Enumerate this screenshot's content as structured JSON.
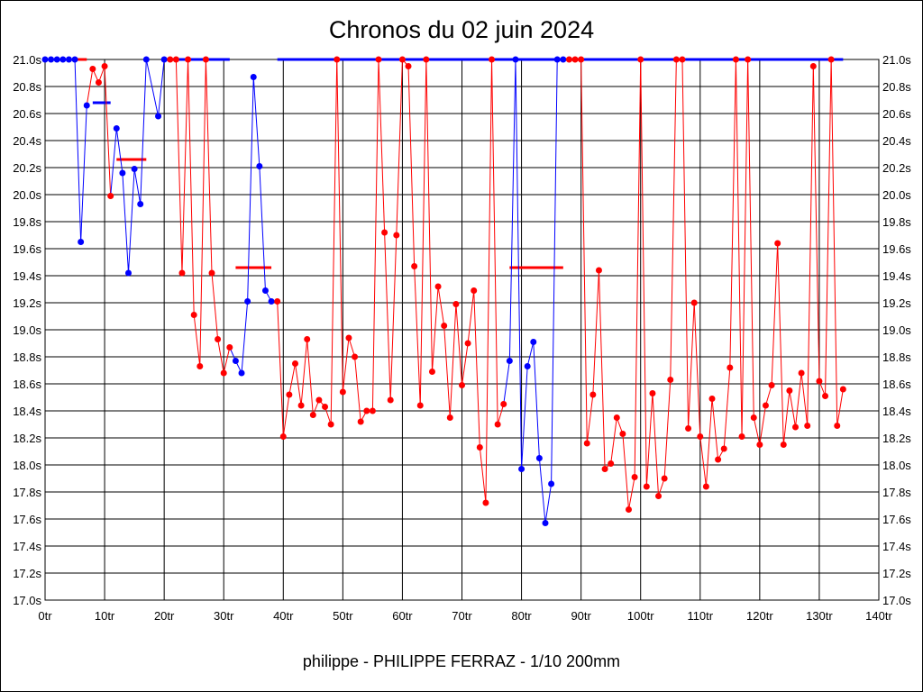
{
  "chart_data": {
    "type": "line",
    "title": "Chronos du 02 juin 2024",
    "footer": "philippe - PHILIPPE FERRAZ - 1/10 200mm",
    "xlabel": "",
    "ylabel": "",
    "xlim": [
      0,
      140
    ],
    "ylim": [
      17.0,
      21.0
    ],
    "x_ticks": [
      "0tr",
      "10tr",
      "20tr",
      "30tr",
      "40tr",
      "50tr",
      "60tr",
      "70tr",
      "80tr",
      "90tr",
      "100tr",
      "110tr",
      "120tr",
      "130tr",
      "140tr"
    ],
    "y_ticks": [
      "17.0s",
      "17.2s",
      "17.4s",
      "17.6s",
      "17.8s",
      "18.0s",
      "18.2s",
      "18.4s",
      "18.6s",
      "18.8s",
      "19.0s",
      "19.2s",
      "19.4s",
      "19.6s",
      "19.8s",
      "20.0s",
      "20.2s",
      "20.4s",
      "20.6s",
      "20.8s",
      "21.0s"
    ],
    "grid": true,
    "colors": {
      "b": "#0000ff",
      "r": "#ff0000",
      "grid": "#000000"
    },
    "points": [
      [
        0,
        21.0,
        "b"
      ],
      [
        1,
        21.0,
        "b"
      ],
      [
        2,
        21.0,
        "b"
      ],
      [
        3,
        21.0,
        "b"
      ],
      [
        4,
        21.0,
        "b"
      ],
      [
        5,
        21.0,
        "b"
      ],
      [
        6,
        19.65,
        "b"
      ],
      [
        7,
        20.66,
        "b"
      ],
      [
        8,
        20.93,
        "r"
      ],
      [
        9,
        20.83,
        "r"
      ],
      [
        10,
        20.95,
        "r"
      ],
      [
        11,
        19.99,
        "r"
      ],
      [
        12,
        20.49,
        "b"
      ],
      [
        13,
        20.16,
        "b"
      ],
      [
        14,
        19.42,
        "b"
      ],
      [
        15,
        20.19,
        "b"
      ],
      [
        16,
        19.93,
        "b"
      ],
      [
        17,
        21.0,
        "b"
      ],
      [
        19,
        20.58,
        "b"
      ],
      [
        20,
        21.0,
        "b"
      ],
      [
        21,
        21.0,
        "r"
      ],
      [
        22,
        21.0,
        "r"
      ],
      [
        23,
        19.42,
        "r"
      ],
      [
        24,
        21.0,
        "r"
      ],
      [
        25,
        19.11,
        "r"
      ],
      [
        26,
        18.73,
        "r"
      ],
      [
        27,
        21.0,
        "r"
      ],
      [
        28,
        19.42,
        "r"
      ],
      [
        29,
        18.93,
        "r"
      ],
      [
        30,
        18.68,
        "r"
      ],
      [
        31,
        18.87,
        "r"
      ],
      [
        32,
        18.77,
        "b"
      ],
      [
        33,
        18.68,
        "b"
      ],
      [
        34,
        19.21,
        "b"
      ],
      [
        35,
        20.87,
        "b"
      ],
      [
        36,
        20.21,
        "b"
      ],
      [
        37,
        19.29,
        "b"
      ],
      [
        38,
        19.21,
        "b"
      ],
      [
        39,
        19.21,
        "r"
      ],
      [
        40,
        18.21,
        "r"
      ],
      [
        41,
        18.52,
        "r"
      ],
      [
        42,
        18.75,
        "r"
      ],
      [
        43,
        18.44,
        "r"
      ],
      [
        44,
        18.93,
        "r"
      ],
      [
        45,
        18.37,
        "r"
      ],
      [
        46,
        18.48,
        "r"
      ],
      [
        47,
        18.43,
        "r"
      ],
      [
        48,
        18.3,
        "r"
      ],
      [
        49,
        21.0,
        "r"
      ],
      [
        50,
        18.54,
        "r"
      ],
      [
        51,
        18.94,
        "r"
      ],
      [
        52,
        18.8,
        "r"
      ],
      [
        53,
        18.32,
        "r"
      ],
      [
        54,
        18.4,
        "r"
      ],
      [
        55,
        18.4,
        "r"
      ],
      [
        56,
        21.0,
        "r"
      ],
      [
        57,
        19.72,
        "r"
      ],
      [
        58,
        18.48,
        "r"
      ],
      [
        59,
        19.7,
        "r"
      ],
      [
        60,
        21.0,
        "r"
      ],
      [
        61,
        20.95,
        "r"
      ],
      [
        62,
        19.47,
        "r"
      ],
      [
        63,
        18.44,
        "r"
      ],
      [
        64,
        21.0,
        "r"
      ],
      [
        65,
        18.69,
        "r"
      ],
      [
        66,
        19.32,
        "r"
      ],
      [
        67,
        19.03,
        "r"
      ],
      [
        68,
        18.35,
        "r"
      ],
      [
        69,
        19.19,
        "r"
      ],
      [
        70,
        18.59,
        "r"
      ],
      [
        71,
        18.9,
        "r"
      ],
      [
        72,
        19.29,
        "r"
      ],
      [
        73,
        18.13,
        "r"
      ],
      [
        74,
        17.72,
        "r"
      ],
      [
        75,
        21.0,
        "r"
      ],
      [
        76,
        18.3,
        "r"
      ],
      [
        77,
        18.45,
        "r"
      ],
      [
        78,
        18.77,
        "b"
      ],
      [
        79,
        21.0,
        "b"
      ],
      [
        80,
        17.97,
        "b"
      ],
      [
        81,
        18.73,
        "b"
      ],
      [
        82,
        18.91,
        "b"
      ],
      [
        83,
        18.05,
        "b"
      ],
      [
        84,
        17.57,
        "b"
      ],
      [
        85,
        17.86,
        "b"
      ],
      [
        86,
        21.0,
        "b"
      ],
      [
        87,
        21.0,
        "b"
      ],
      [
        88,
        21.0,
        "r"
      ],
      [
        89,
        21.0,
        "r"
      ],
      [
        90,
        21.0,
        "r"
      ],
      [
        91,
        18.16,
        "r"
      ],
      [
        92,
        18.52,
        "r"
      ],
      [
        93,
        19.44,
        "r"
      ],
      [
        94,
        17.97,
        "r"
      ],
      [
        95,
        18.01,
        "r"
      ],
      [
        96,
        18.35,
        "r"
      ],
      [
        97,
        18.23,
        "r"
      ],
      [
        98,
        17.67,
        "r"
      ],
      [
        99,
        17.91,
        "r"
      ],
      [
        100,
        21.0,
        "r"
      ],
      [
        101,
        17.84,
        "r"
      ],
      [
        102,
        18.53,
        "r"
      ],
      [
        103,
        17.77,
        "r"
      ],
      [
        104,
        17.9,
        "r"
      ],
      [
        105,
        18.63,
        "r"
      ],
      [
        106,
        21.0,
        "r"
      ],
      [
        107,
        21.0,
        "r"
      ],
      [
        108,
        18.27,
        "r"
      ],
      [
        109,
        19.2,
        "r"
      ],
      [
        110,
        18.21,
        "r"
      ],
      [
        111,
        17.84,
        "r"
      ],
      [
        112,
        18.49,
        "r"
      ],
      [
        113,
        18.04,
        "r"
      ],
      [
        114,
        18.12,
        "r"
      ],
      [
        115,
        18.72,
        "r"
      ],
      [
        116,
        21.0,
        "r"
      ],
      [
        117,
        18.21,
        "r"
      ],
      [
        118,
        21.0,
        "r"
      ],
      [
        119,
        18.35,
        "r"
      ],
      [
        120,
        18.15,
        "r"
      ],
      [
        121,
        18.44,
        "r"
      ],
      [
        122,
        18.59,
        "r"
      ],
      [
        123,
        19.64,
        "r"
      ],
      [
        124,
        18.15,
        "r"
      ],
      [
        125,
        18.55,
        "r"
      ],
      [
        126,
        18.28,
        "r"
      ],
      [
        127,
        18.68,
        "r"
      ],
      [
        128,
        18.29,
        "r"
      ],
      [
        129,
        20.95,
        "r"
      ],
      [
        130,
        18.62,
        "r"
      ],
      [
        131,
        18.51,
        "r"
      ],
      [
        132,
        21.0,
        "r"
      ],
      [
        133,
        18.29,
        "r"
      ],
      [
        134,
        18.56,
        "r"
      ]
    ],
    "average_segments": [
      {
        "x": [
          5,
          7
        ],
        "y": 21.0,
        "color": "r"
      },
      {
        "x": [
          8,
          11
        ],
        "y": 20.68,
        "color": "b"
      },
      {
        "x": [
          12,
          17
        ],
        "y": 20.26,
        "color": "r"
      },
      {
        "x": [
          20,
          31
        ],
        "y": 21.0,
        "color": "b"
      },
      {
        "x": [
          32,
          38
        ],
        "y": 19.46,
        "color": "r"
      },
      {
        "x": [
          39,
          134
        ],
        "y": 21.0,
        "color": "b"
      },
      {
        "x": [
          78,
          87
        ],
        "y": 19.46,
        "color": "r"
      }
    ]
  }
}
